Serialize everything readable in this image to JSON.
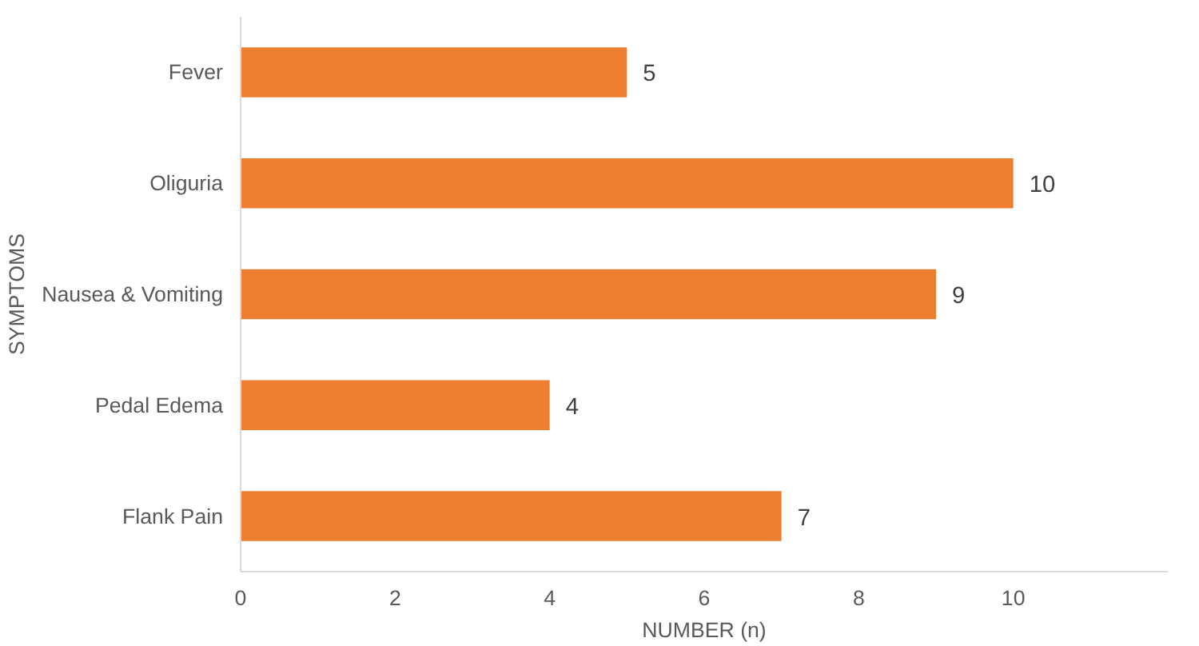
{
  "chart_data": {
    "type": "bar",
    "orientation": "horizontal",
    "xlabel": "NUMBER (n)",
    "ylabel": "SYMPTOMS",
    "categories": [
      "Fever",
      "Oliguria",
      "Nausea & Vomiting",
      "Pedal Edema",
      "Flank Pain"
    ],
    "values": [
      5,
      10,
      9,
      4,
      7
    ],
    "color": "#ef7f30",
    "data_labels": true,
    "xlim": [
      0,
      12
    ],
    "xticks": [
      0,
      2,
      4,
      6,
      8,
      10
    ],
    "grid": false
  }
}
